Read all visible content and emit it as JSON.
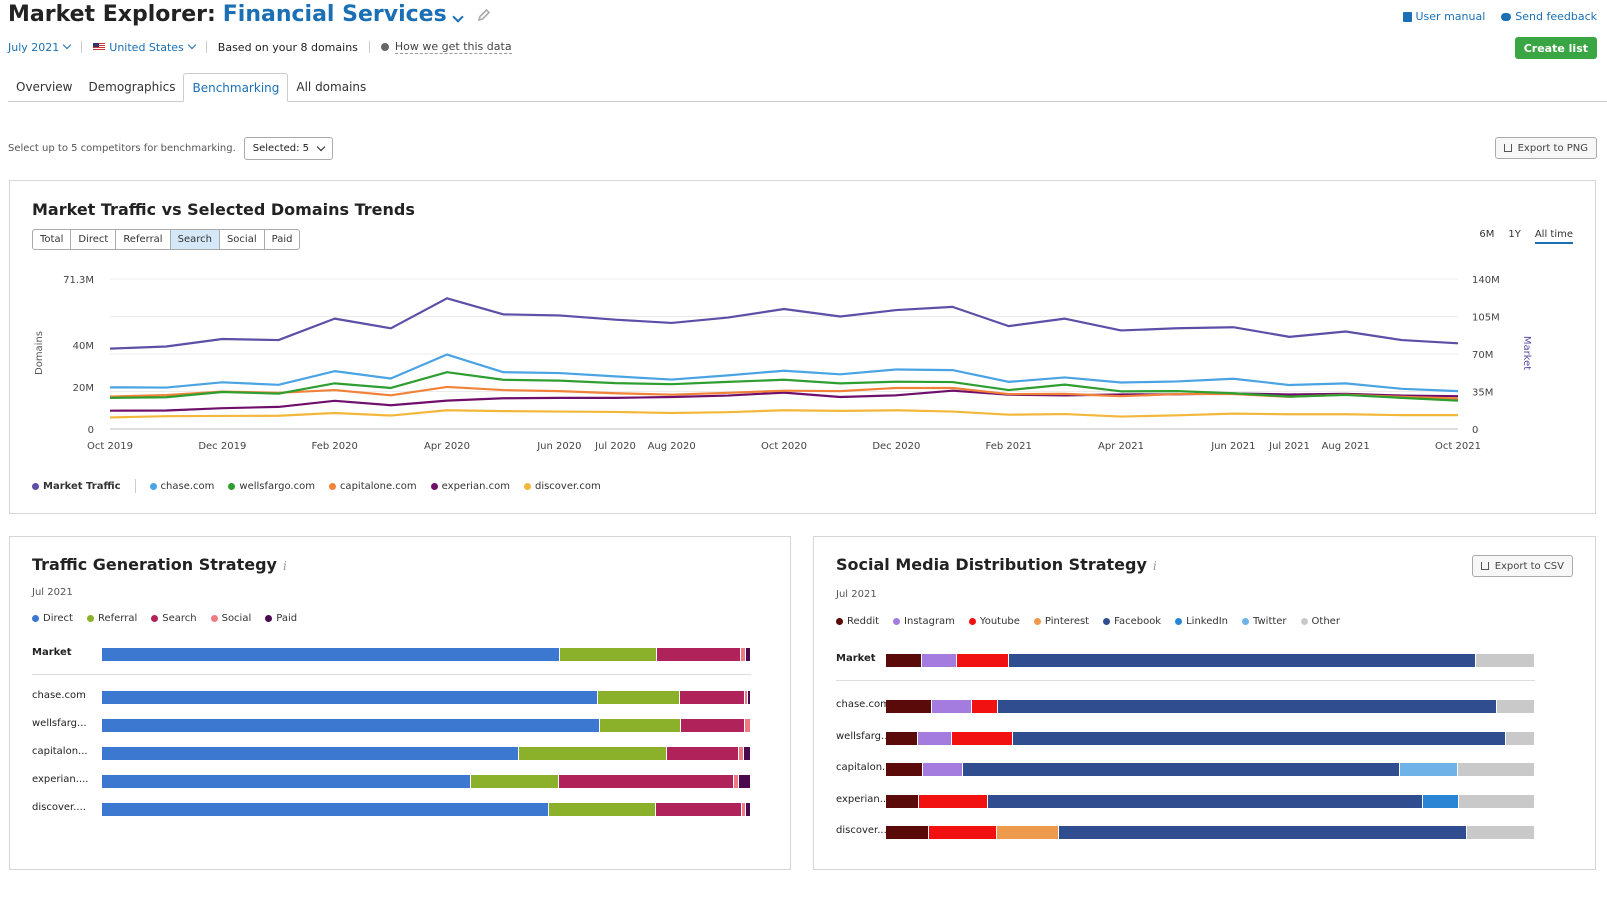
{
  "header": {
    "title": "Market Explorer:",
    "market": "Financial Services",
    "user_manual": "User manual",
    "send_feedback": "Send feedback",
    "create_list": "Create list"
  },
  "subbar": {
    "date": "July 2021",
    "country": "United States",
    "based_on": "Based on your 8 domains",
    "how_data": "How we get this data"
  },
  "tabs": [
    "Overview",
    "Demographics",
    "Benchmarking",
    "All domains"
  ],
  "active_tab": "Benchmarking",
  "competitors": {
    "prompt": "Select up to 5 competitors for benchmarking.",
    "selected": "Selected: 5",
    "export_png": "Export to PNG"
  },
  "trends": {
    "title": "Market Traffic vs Selected Domains Trends",
    "filters": [
      "Total",
      "Direct",
      "Referral",
      "Search",
      "Social",
      "Paid"
    ],
    "active_filter": "Search",
    "ranges": [
      "6M",
      "1Y",
      "All time"
    ],
    "active_range": "All time"
  },
  "chart_data": {
    "type": "line",
    "title": "Market Traffic vs Selected Domains Trends",
    "y_left_label": "Domains",
    "y_right_label": "Market",
    "y_left_ticks": [
      "71.3M",
      "40M",
      "20M",
      "0"
    ],
    "y_left_tick_values": [
      71.3,
      40,
      20,
      0
    ],
    "y_right_ticks": [
      "140M",
      "105M",
      "70M",
      "35M",
      "0"
    ],
    "y_right_tick_values": [
      140,
      105,
      70,
      35,
      0
    ],
    "x_ticks": [
      "Oct 2019",
      "Dec 2019",
      "Feb 2020",
      "Apr 2020",
      "Jun 2020",
      "Jul 2020",
      "Aug 2020",
      "Oct 2020",
      "Dec 2020",
      "Feb 2021",
      "Apr 2021",
      "Jun 2021",
      "Jul 2021",
      "Aug 2021",
      "Oct 2021"
    ],
    "x_tick_months": [
      0,
      2,
      4,
      6,
      8,
      9,
      10,
      12,
      14,
      16,
      18,
      20,
      21,
      22,
      24
    ],
    "months": [
      0,
      1,
      2,
      3,
      4,
      5,
      6,
      7,
      8,
      9,
      10,
      11,
      12,
      13,
      14,
      15,
      16,
      17,
      18,
      19,
      20,
      21,
      22,
      23,
      24
    ],
    "series": [
      {
        "name": "Market Traffic",
        "axis": "right",
        "color": "#5b4fa8",
        "values": [
          75,
          77,
          84,
          83,
          103,
          94,
          122,
          107,
          106,
          102,
          99,
          104,
          112,
          105,
          111,
          114,
          96,
          103,
          92,
          94,
          95,
          86,
          91,
          83,
          80
        ]
      },
      {
        "name": "chase.com",
        "axis": "left",
        "color": "#4aa3e3",
        "values": [
          19.8,
          19.7,
          22.2,
          21.0,
          27.5,
          24.0,
          35.4,
          27.0,
          26.6,
          25.0,
          23.5,
          25.5,
          27.7,
          26.0,
          28.3,
          28.0,
          22.4,
          24.5,
          22.1,
          22.6,
          23.9,
          20.9,
          21.7,
          19.1,
          18.0
        ]
      },
      {
        "name": "wellsfargo.com",
        "axis": "left",
        "color": "#2e9e30",
        "values": [
          14.8,
          15.1,
          17.6,
          16.8,
          21.7,
          19.5,
          27.0,
          23.4,
          23.0,
          21.8,
          21.3,
          22.4,
          23.4,
          21.7,
          22.5,
          22.3,
          18.5,
          21.1,
          17.9,
          18.0,
          17.0,
          15.4,
          16.2,
          14.8,
          13.5
        ]
      },
      {
        "name": "capitalone.com",
        "axis": "left",
        "color": "#f0823a",
        "values": [
          15.4,
          16.1,
          17.8,
          17.2,
          18.5,
          16.0,
          20.0,
          18.5,
          18.0,
          17.0,
          16.3,
          17.2,
          18.2,
          18.0,
          19.5,
          19.5,
          16.6,
          16.7,
          15.6,
          16.6,
          16.6,
          15.3,
          16.3,
          15.3,
          14.5
        ]
      },
      {
        "name": "experian.com",
        "axis": "left",
        "color": "#6f0f6b",
        "values": [
          8.7,
          8.8,
          9.9,
          10.5,
          13.4,
          11.3,
          13.5,
          14.6,
          14.8,
          14.8,
          15.2,
          15.9,
          17.3,
          15.2,
          16.0,
          18.2,
          16.3,
          16.0,
          16.4,
          16.5,
          16.9,
          16.4,
          16.7,
          15.9,
          15.6
        ]
      },
      {
        "name": "discover.com",
        "axis": "left",
        "color": "#f2b73b",
        "values": [
          5.5,
          6.1,
          6.2,
          6.3,
          7.6,
          6.4,
          8.9,
          8.5,
          8.3,
          8.1,
          7.6,
          8.0,
          8.9,
          8.6,
          8.9,
          8.3,
          6.8,
          7.1,
          5.9,
          6.5,
          7.3,
          7.0,
          7.0,
          6.6,
          6.6
        ]
      }
    ]
  },
  "traffic": {
    "title": "Traffic Generation Strategy",
    "date": "Jul 2021",
    "legend": [
      {
        "name": "Direct",
        "color": "#3d78d0"
      },
      {
        "name": "Referral",
        "color": "#8bb02a"
      },
      {
        "name": "Search",
        "color": "#b0225a"
      },
      {
        "name": "Social",
        "color": "#ef7a82"
      },
      {
        "name": "Paid",
        "color": "#4b0a4d"
      }
    ],
    "rows": [
      {
        "label": "Market",
        "bold": true,
        "values": [
          70.5,
          15.0,
          13.0,
          0.8,
          0.7
        ]
      },
      {
        "label": "chase.com",
        "values": [
          76.5,
          12.5,
          10.0,
          0.6,
          0.4
        ]
      },
      {
        "label": "wellsfarg...",
        "values": [
          76.8,
          12.4,
          9.9,
          0.9,
          0.0
        ]
      },
      {
        "label": "capitalon...",
        "values": [
          64.2,
          22.9,
          11.1,
          0.8,
          1.0
        ]
      },
      {
        "label": "experian....",
        "values": [
          56.9,
          13.5,
          27.0,
          0.8,
          1.8
        ]
      },
      {
        "label": "discover....",
        "values": [
          68.9,
          16.5,
          13.2,
          0.7,
          0.7
        ]
      }
    ]
  },
  "social": {
    "title": "Social Media Distribution Strategy",
    "date": "Jul 2021",
    "export_csv": "Export to CSV",
    "legend": [
      {
        "name": "Reddit",
        "color": "#5b0a0a"
      },
      {
        "name": "Instagram",
        "color": "#a47ce0"
      },
      {
        "name": "Youtube",
        "color": "#f21111"
      },
      {
        "name": "Pinterest",
        "color": "#ee9a4c"
      },
      {
        "name": "Facebook",
        "color": "#2f4d8f"
      },
      {
        "name": "LinkedIn",
        "color": "#2a86d4"
      },
      {
        "name": "Twitter",
        "color": "#6fb2e8"
      },
      {
        "name": "Other",
        "color": "#c9c9c9"
      }
    ],
    "rows": [
      {
        "label": "Market",
        "bold": true,
        "values": [
          5.6,
          5.4,
          7.9,
          0,
          72.0,
          0,
          0,
          9.1
        ]
      },
      {
        "label": "chase.com",
        "values": [
          7.1,
          6.2,
          3.9,
          0,
          76.9,
          0,
          0,
          5.9
        ]
      },
      {
        "label": "wellsfarg...",
        "values": [
          5.0,
          5.1,
          9.4,
          0,
          76.1,
          0,
          0,
          4.4
        ]
      },
      {
        "label": "capitalon...",
        "values": [
          5.7,
          6.2,
          0,
          0,
          67.3,
          0,
          8.9,
          11.9
        ]
      },
      {
        "label": "experian....",
        "values": [
          5.1,
          0,
          10.6,
          0,
          67.0,
          5.6,
          0,
          11.7
        ]
      },
      {
        "label": "discover....",
        "values": [
          6.6,
          0,
          10.5,
          9.6,
          62.8,
          0,
          0,
          10.5
        ]
      }
    ]
  }
}
